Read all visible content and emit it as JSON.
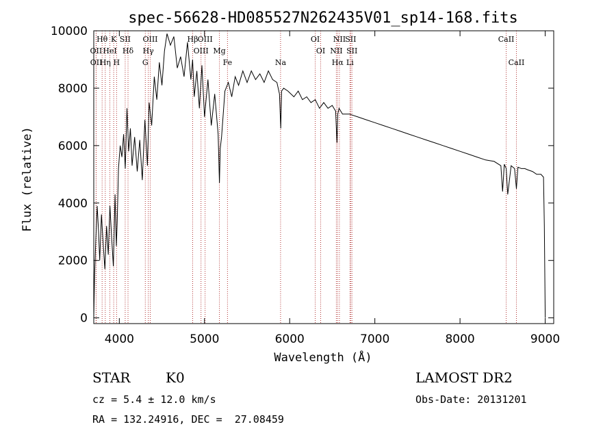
{
  "chart_data": {
    "type": "line",
    "title": "spec-56628-HD085527N262435V01_sp14-168.fits",
    "xlabel": "Wavelength (Å)",
    "ylabel": "Flux (relative)",
    "xlim": [
      3700,
      9100
    ],
    "ylim": [
      -200,
      10000
    ],
    "x_ticks": [
      "4000",
      "5000",
      "6000",
      "7000",
      "8000",
      "9000"
    ],
    "y_ticks": [
      "0",
      "2000",
      "4000",
      "6000",
      "8000",
      "10000"
    ],
    "grid": false,
    "series": [
      {
        "x": [
          3700,
          3710,
          3725,
          3740,
          3755,
          3770,
          3790,
          3810,
          3830,
          3850,
          3870,
          3890,
          3910,
          3930,
          3950,
          3965,
          3975,
          3990,
          4010,
          4030,
          4050,
          4070,
          4090,
          4110,
          4130,
          4150,
          4180,
          4210,
          4240,
          4270,
          4300,
          4330,
          4350,
          4380,
          4410,
          4440,
          4470,
          4500,
          4530,
          4560,
          4600,
          4640,
          4680,
          4720,
          4760,
          4800,
          4840,
          4860,
          4880,
          4910,
          4940,
          4970,
          5000,
          5040,
          5080,
          5120,
          5160,
          5175,
          5185,
          5200,
          5240,
          5280,
          5320,
          5360,
          5400,
          5450,
          5500,
          5550,
          5600,
          5650,
          5700,
          5750,
          5800,
          5850,
          5880,
          5895,
          5905,
          5930,
          5980,
          6050,
          6100,
          6150,
          6200,
          6250,
          6300,
          6350,
          6400,
          6450,
          6500,
          6540,
          6555,
          6565,
          6580,
          6620,
          6700,
          6800,
          6900,
          7000,
          7100,
          7200,
          7300,
          7400,
          7500,
          7600,
          7700,
          7800,
          7900,
          8000,
          8100,
          8200,
          8300,
          8400,
          8480,
          8500,
          8520,
          8542,
          8560,
          8600,
          8640,
          8662,
          8680,
          8720,
          8760,
          8800,
          8850,
          8900,
          8950,
          8980,
          8990,
          9000
        ],
        "y": [
          0,
          1500,
          2800,
          3900,
          3100,
          2000,
          3600,
          2600,
          1700,
          3200,
          2200,
          3900,
          2800,
          1800,
          4300,
          2500,
          3300,
          5200,
          6000,
          5600,
          6400,
          5200,
          7300,
          5800,
          6600,
          5300,
          6300,
          5100,
          6200,
          4800,
          6900,
          5300,
          7500,
          6700,
          8400,
          7600,
          8900,
          8100,
          9300,
          9900,
          9500,
          9800,
          8700,
          9100,
          8400,
          9600,
          8300,
          9000,
          7700,
          8600,
          7300,
          8800,
          7000,
          8300,
          6700,
          7800,
          6400,
          4700,
          5900,
          6300,
          7900,
          8200,
          7700,
          8400,
          8100,
          8600,
          8200,
          8600,
          8300,
          8500,
          8200,
          8600,
          8300,
          8200,
          7800,
          6600,
          7900,
          8000,
          7900,
          7700,
          7900,
          7600,
          7700,
          7500,
          7600,
          7300,
          7500,
          7300,
          7400,
          7200,
          6100,
          7100,
          7300,
          7100,
          7100,
          7000,
          6900,
          6800,
          6700,
          6600,
          6500,
          6400,
          6300,
          6200,
          6100,
          6000,
          5900,
          5800,
          5700,
          5600,
          5500,
          5450,
          5300,
          4400,
          5350,
          5200,
          4300,
          5300,
          5200,
          4500,
          5250,
          5200,
          5200,
          5150,
          5100,
          5000,
          5000,
          4900,
          3200,
          0
        ]
      }
    ],
    "spectral_lines": [
      {
        "label": "Hθ",
        "x": 3798
      },
      {
        "label": "OII",
        "x": 3727
      },
      {
        "label": "OII",
        "x": 3729
      },
      {
        "label": "K",
        "x": 3934
      },
      {
        "label": "HeI",
        "x": 3889
      },
      {
        "label": "Hη",
        "x": 3835
      },
      {
        "label": "SII",
        "x": 4069
      },
      {
        "label": "Hδ",
        "x": 4102
      },
      {
        "label": "H",
        "x": 3968
      },
      {
        "label": "OIII",
        "x": 4363
      },
      {
        "label": "Hγ",
        "x": 4340
      },
      {
        "label": "G",
        "x": 4305
      },
      {
        "label": "OIII",
        "x": 5007
      },
      {
        "label": "OIII",
        "x": 4959
      },
      {
        "label": "Fe",
        "x": 5270
      },
      {
        "label": "Hβ",
        "x": 4861
      },
      {
        "label": "Mg",
        "x": 5175
      },
      {
        "label": "Na",
        "x": 5893
      },
      {
        "label": "OI",
        "x": 6300
      },
      {
        "label": "OI",
        "x": 6364
      },
      {
        "label": "Hα",
        "x": 6563
      },
      {
        "label": "SII",
        "x": 6716
      },
      {
        "label": "NII",
        "x": 6548
      },
      {
        "label": "Li",
        "x": 6708
      },
      {
        "label": "NII",
        "x": 6584
      },
      {
        "label": "SII",
        "x": 6731
      },
      {
        "label": "CaII",
        "x": 8662
      },
      {
        "label": "CaII",
        "x": 8542
      }
    ]
  },
  "info": {
    "class": "STAR",
    "subclass": "K0",
    "survey": "LAMOST DR2",
    "cz": "cz = 5.4 ± 12.0 km/s",
    "obs_date": "Obs-Date: 20131201",
    "coords": "RA = 132.24916, DEC =  27.08459"
  }
}
